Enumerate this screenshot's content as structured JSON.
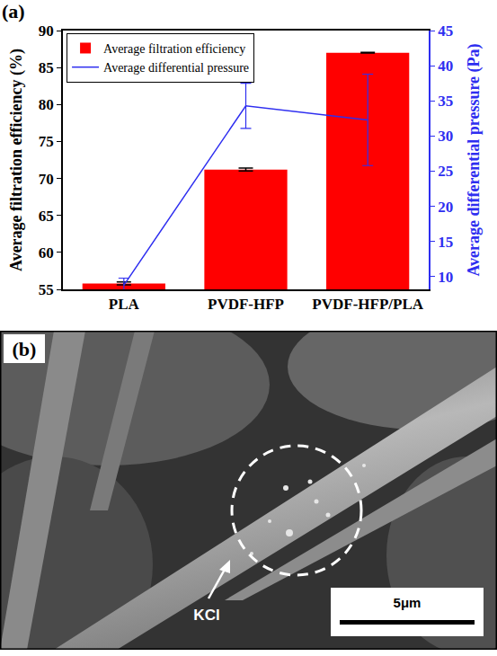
{
  "chart_data": {
    "type": "bar",
    "panel": "(a)",
    "categories": [
      "PLA",
      "PVDF-HFP",
      "PVDF-HFP/PLA"
    ],
    "series": [
      {
        "name": "Average filtration efficiency",
        "type": "bar",
        "color": "#ff0000",
        "values": [
          55.8,
          71.2,
          87.0
        ],
        "error": [
          0.2,
          0.2,
          0.05
        ]
      },
      {
        "name": "Average differential pressure",
        "type": "line",
        "axis": "y2",
        "color": "#2e2ef0",
        "line_style": "solid",
        "values": [
          8.8,
          34.3,
          32.3
        ],
        "error": [
          1.0,
          3.2,
          6.5
        ]
      }
    ],
    "y_label": "Average filtration efficiency (%)",
    "y2_label": "Average differential pressure (Pa)",
    "ylim": [
      55,
      90
    ],
    "yticks": [
      55,
      60,
      65,
      70,
      75,
      80,
      85,
      90
    ],
    "y2lim": [
      8.2,
      45
    ],
    "y2ticks": [
      10,
      15,
      20,
      25,
      30,
      35,
      40,
      45
    ],
    "legend": "top left",
    "grid": false
  },
  "image_panel": {
    "panel": "(b)",
    "annotation": "KCl",
    "scale_bar": "5μm"
  }
}
